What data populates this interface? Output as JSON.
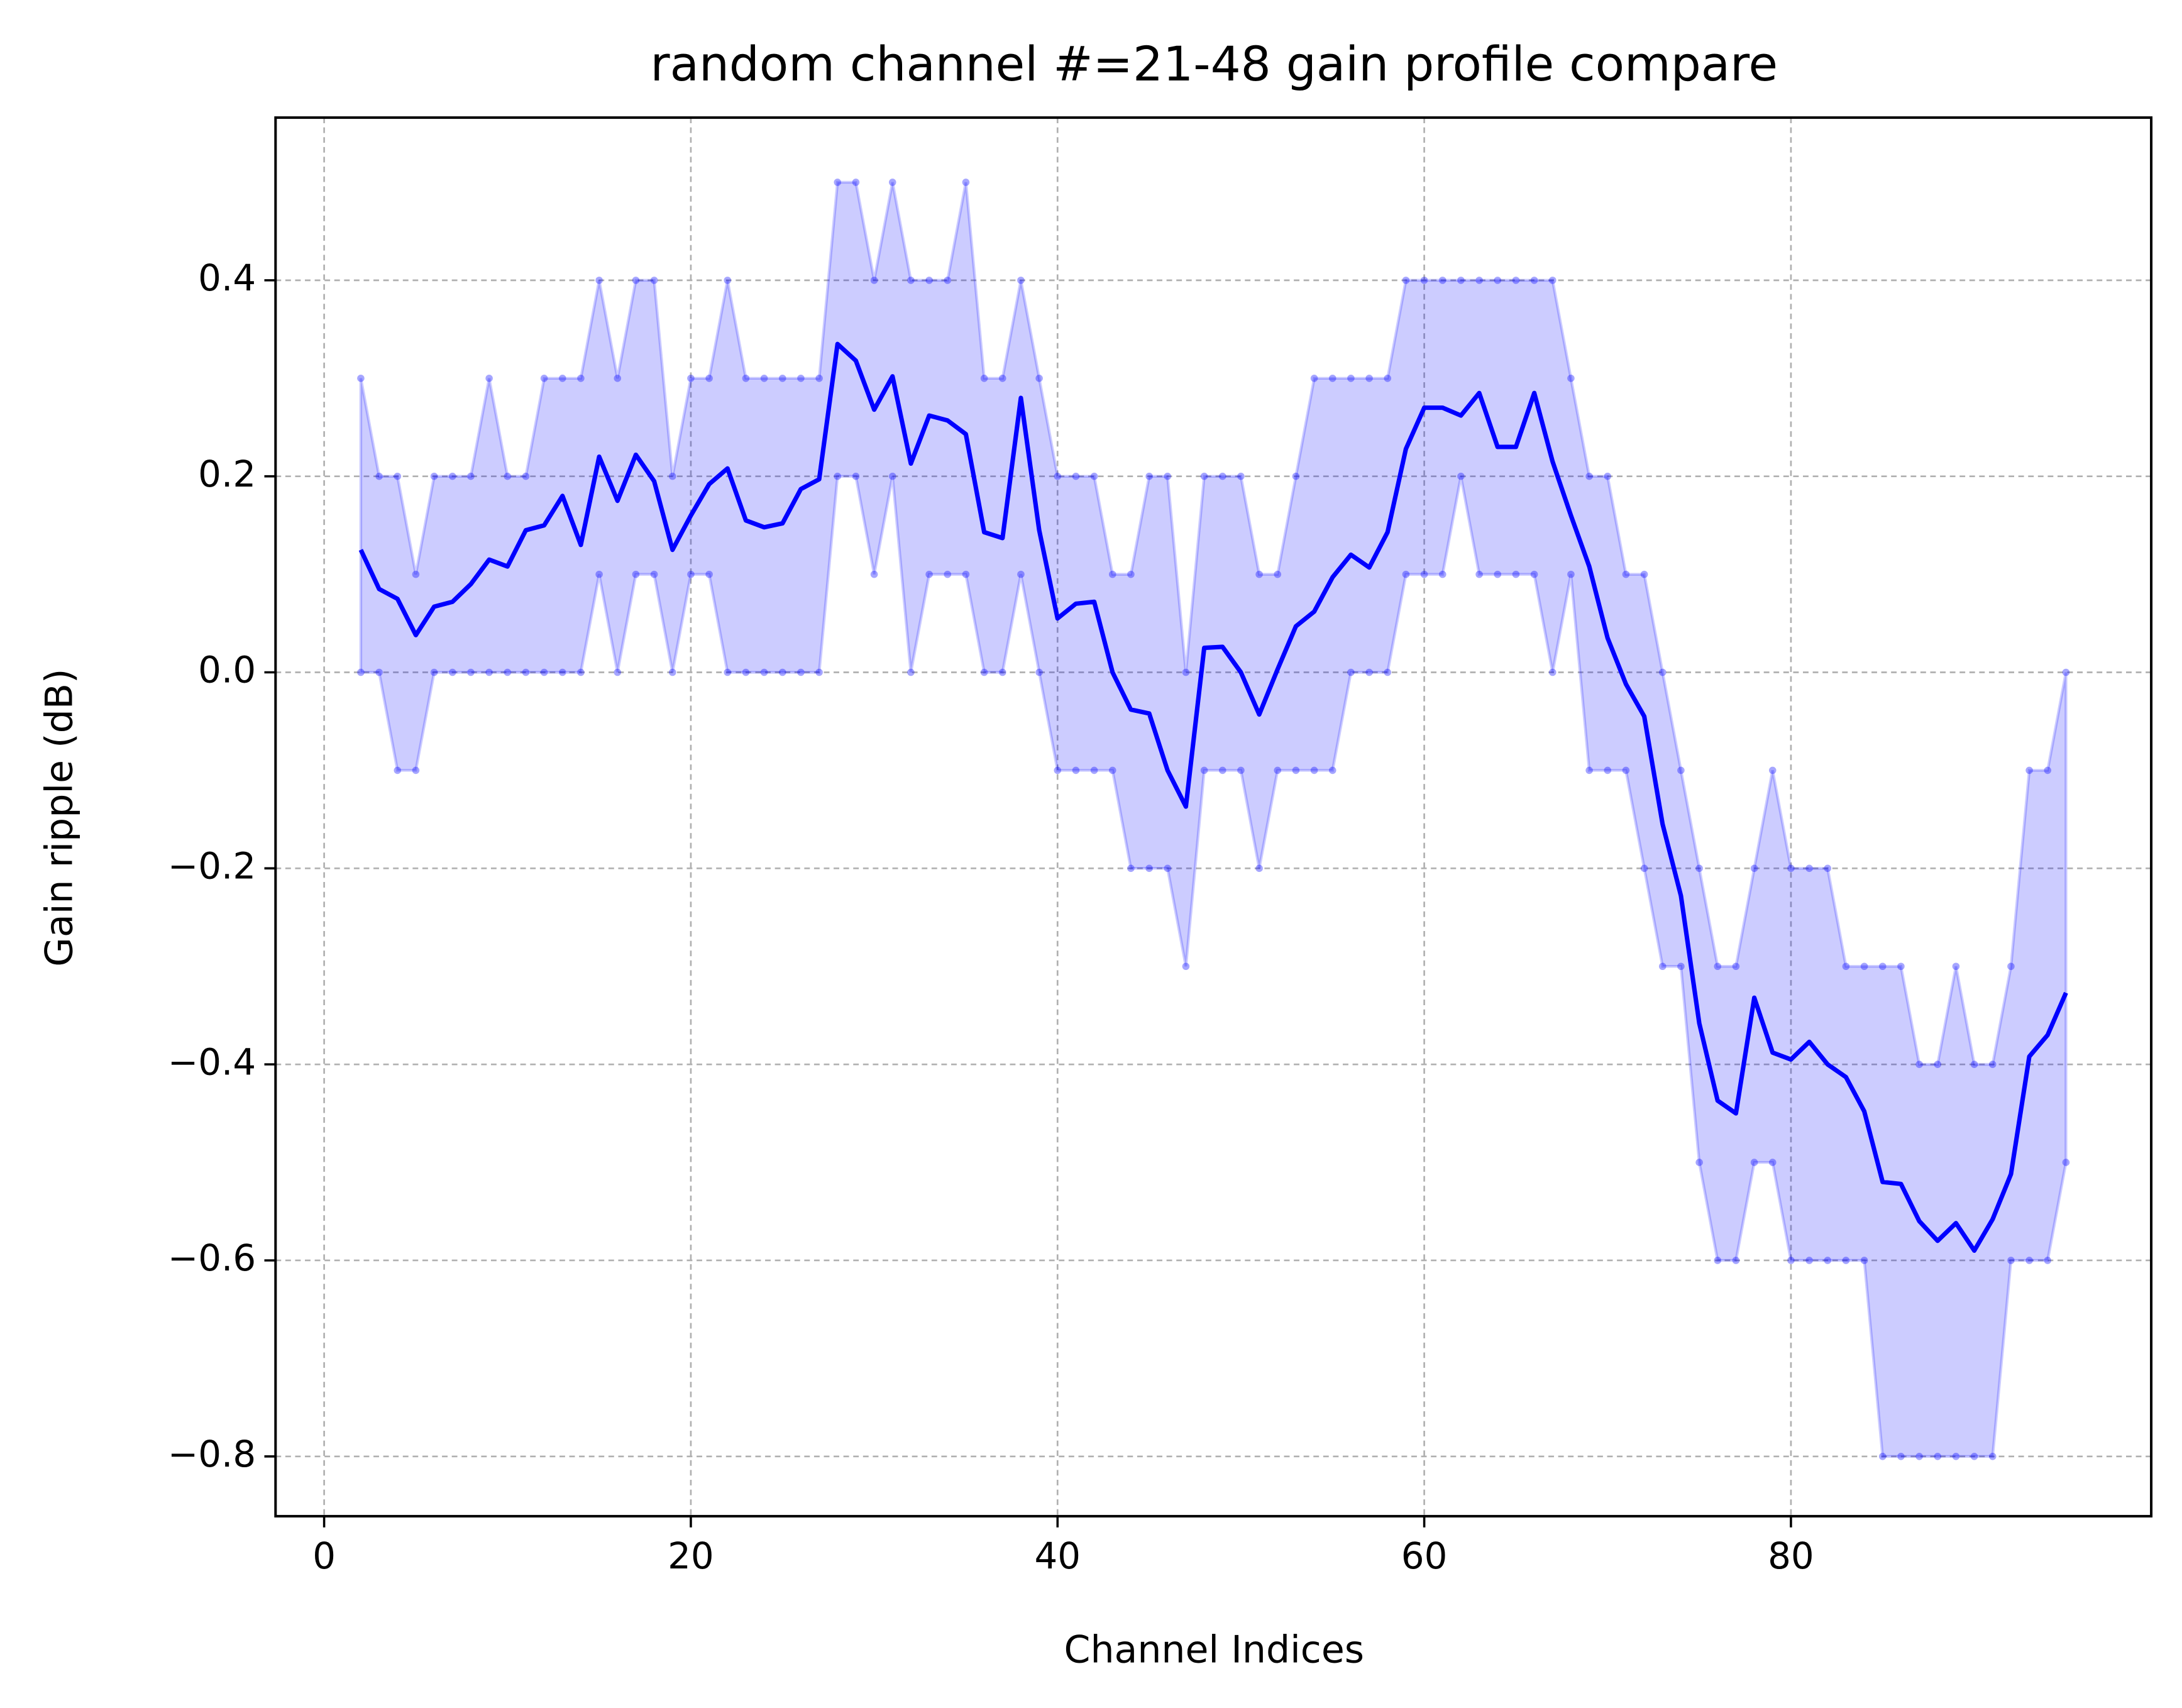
{
  "chart_data": {
    "type": "line",
    "title": "random channel #=21-48 gain profile compare",
    "x_label": "Channel Indices",
    "y_label": "Gain ripple (dB)",
    "x": [
      2,
      3,
      4,
      5,
      6,
      7,
      8,
      9,
      10,
      11,
      12,
      13,
      14,
      15,
      16,
      17,
      18,
      19,
      20,
      21,
      22,
      23,
      24,
      25,
      26,
      27,
      28,
      29,
      30,
      31,
      32,
      33,
      34,
      35,
      36,
      37,
      38,
      39,
      40,
      41,
      42,
      43,
      44,
      45,
      46,
      47,
      48,
      49,
      50,
      51,
      52,
      53,
      54,
      55,
      56,
      57,
      58,
      59,
      60,
      61,
      62,
      63,
      64,
      65,
      66,
      67,
      68,
      69,
      70,
      71,
      72,
      73,
      74,
      75,
      76,
      77,
      78,
      79,
      80,
      81,
      82,
      83,
      84,
      85,
      86,
      87,
      88,
      89,
      90,
      91,
      92,
      93,
      94,
      95
    ],
    "series": [
      {
        "color": "#0000ff",
        "values": [
          0.125,
          0.085,
          0.075,
          0.038,
          0.067,
          0.072,
          0.09,
          0.115,
          0.108,
          0.145,
          0.15,
          0.18,
          0.13,
          0.22,
          0.175,
          0.222,
          0.195,
          0.125,
          0.16,
          0.192,
          0.208,
          0.155,
          0.148,
          0.152,
          0.187,
          0.197,
          0.335,
          0.318,
          0.268,
          0.302,
          0.213,
          0.262,
          0.257,
          0.243,
          0.143,
          0.137,
          0.28,
          0.145,
          0.055,
          0.07,
          0.072,
          0.0,
          -0.038,
          -0.042,
          -0.1,
          -0.137,
          0.025,
          0.026,
          0.0,
          -0.043,
          0.003,
          0.047,
          0.062,
          0.097,
          0.12,
          0.107,
          0.143,
          0.228,
          0.27,
          0.27,
          0.262,
          0.285,
          0.23,
          0.23,
          0.285,
          0.215,
          0.16,
          0.108,
          0.035,
          -0.012,
          -0.045,
          -0.155,
          -0.228,
          -0.358,
          -0.437,
          -0.45,
          -0.332,
          -0.388,
          -0.395,
          -0.377,
          -0.4,
          -0.413,
          -0.448,
          -0.52,
          -0.522,
          -0.56,
          -0.58,
          -0.562,
          -0.59,
          -0.558,
          -0.512,
          -0.392,
          -0.37,
          -0.327
        ]
      }
    ],
    "band": {
      "color": "#0000ff",
      "upper": [
        0.3,
        0.2,
        0.2,
        0.1,
        0.2,
        0.2,
        0.2,
        0.3,
        0.2,
        0.2,
        0.3,
        0.3,
        0.3,
        0.4,
        0.3,
        0.4,
        0.4,
        0.2,
        0.3,
        0.3,
        0.4,
        0.3,
        0.3,
        0.3,
        0.3,
        0.3,
        0.5,
        0.5,
        0.4,
        0.5,
        0.4,
        0.4,
        0.4,
        0.5,
        0.3,
        0.3,
        0.4,
        0.3,
        0.2,
        0.2,
        0.2,
        0.1,
        0.1,
        0.2,
        0.2,
        0.0,
        0.2,
        0.2,
        0.2,
        0.1,
        0.1,
        0.2,
        0.3,
        0.3,
        0.3,
        0.3,
        0.3,
        0.4,
        0.4,
        0.4,
        0.4,
        0.4,
        0.4,
        0.4,
        0.4,
        0.4,
        0.3,
        0.2,
        0.2,
        0.1,
        0.1,
        0.0,
        -0.1,
        -0.2,
        -0.3,
        -0.3,
        -0.2,
        -0.1,
        -0.2,
        -0.2,
        -0.2,
        -0.3,
        -0.3,
        -0.3,
        -0.3,
        -0.4,
        -0.4,
        -0.3,
        -0.4,
        -0.4,
        -0.3,
        -0.1,
        -0.1,
        0.0
      ],
      "lower": [
        0.0,
        0.0,
        -0.1,
        -0.1,
        0.0,
        0.0,
        0.0,
        0.0,
        0.0,
        0.0,
        0.0,
        0.0,
        0.0,
        0.1,
        0.0,
        0.1,
        0.1,
        0.0,
        0.1,
        0.1,
        0.0,
        0.0,
        0.0,
        0.0,
        0.0,
        0.0,
        0.2,
        0.2,
        0.1,
        0.2,
        0.0,
        0.1,
        0.1,
        0.1,
        0.0,
        0.0,
        0.1,
        0.0,
        -0.1,
        -0.1,
        -0.1,
        -0.1,
        -0.2,
        -0.2,
        -0.2,
        -0.3,
        -0.1,
        -0.1,
        -0.1,
        -0.2,
        -0.1,
        -0.1,
        -0.1,
        -0.1,
        0.0,
        0.0,
        0.0,
        0.1,
        0.1,
        0.1,
        0.2,
        0.1,
        0.1,
        0.1,
        0.1,
        0.0,
        0.1,
        -0.1,
        -0.1,
        -0.1,
        -0.2,
        -0.3,
        -0.3,
        -0.5,
        -0.6,
        -0.6,
        -0.5,
        -0.5,
        -0.6,
        -0.6,
        -0.6,
        -0.6,
        -0.6,
        -0.8,
        -0.8,
        -0.8,
        -0.8,
        -0.8,
        -0.8,
        -0.8,
        -0.6,
        -0.6,
        -0.6,
        -0.5
      ]
    },
    "xlim": [
      -2.65,
      99.65
    ],
    "ylim": [
      -0.861,
      0.566
    ],
    "xticks": [
      0,
      20,
      40,
      60,
      80
    ],
    "yticks": [
      {
        "value": -0.8,
        "label": "−0.8"
      },
      {
        "value": -0.6,
        "label": "−0.6"
      },
      {
        "value": -0.4,
        "label": "−0.4"
      },
      {
        "value": -0.2,
        "label": "−0.2"
      },
      {
        "value": 0.0,
        "label": "0.0"
      },
      0.2,
      0.4
    ],
    "grid": true
  }
}
